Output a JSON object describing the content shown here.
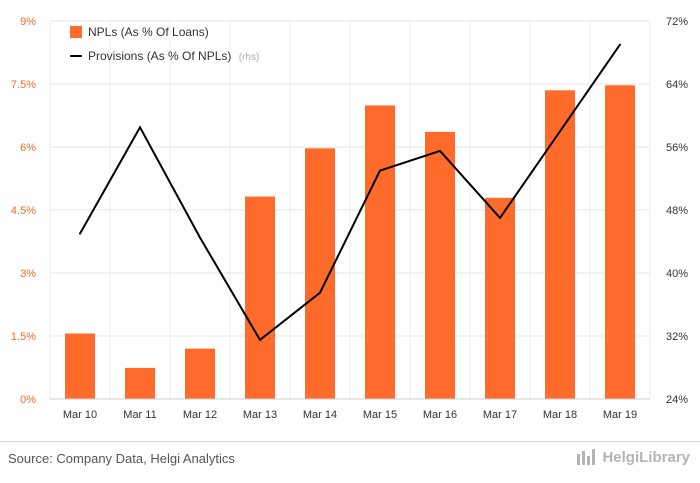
{
  "chart_data": {
    "type": "bar+line",
    "categories": [
      "Mar 10",
      "Mar 11",
      "Mar 12",
      "Mar 13",
      "Mar 14",
      "Mar 15",
      "Mar 16",
      "Mar 17",
      "Mar 18",
      "Mar 19"
    ],
    "series": [
      {
        "name": "NPLs (As % Of Loans)",
        "type": "bar",
        "axis": "left",
        "color": "#ff6b2b",
        "values": [
          1.56,
          0.74,
          1.2,
          4.82,
          5.97,
          6.99,
          6.36,
          4.79,
          7.35,
          7.47
        ]
      },
      {
        "name": "Provisions (As % Of NPLs)",
        "note": "(rhs)",
        "type": "line",
        "axis": "right",
        "color": "#000000",
        "values": [
          45.0,
          58.5,
          44.5,
          31.5,
          37.5,
          53.0,
          55.5,
          47.0,
          58.0,
          69.0
        ]
      }
    ],
    "y_left": {
      "min": 0,
      "max": 9,
      "ticks": [
        0,
        1.5,
        3,
        4.5,
        6,
        7.5,
        9
      ],
      "tick_labels": [
        "0%",
        "1.5%",
        "3%",
        "4.5%",
        "6%",
        "7.5%",
        "9%"
      ]
    },
    "y_right": {
      "min": 24,
      "max": 72,
      "ticks": [
        24,
        32,
        40,
        48,
        56,
        64,
        72
      ],
      "tick_labels": [
        "24%",
        "32%",
        "40%",
        "48%",
        "56%",
        "64%",
        "72%"
      ]
    },
    "grid": true,
    "legend": "top-left"
  },
  "footer": {
    "source": "Source: Company Data, Helgi Analytics",
    "logo_text": "HelgiLibrary"
  },
  "colors": {
    "bar": "#ff6b2b",
    "line": "#000000",
    "left_axis_text": "#f26b2a"
  }
}
